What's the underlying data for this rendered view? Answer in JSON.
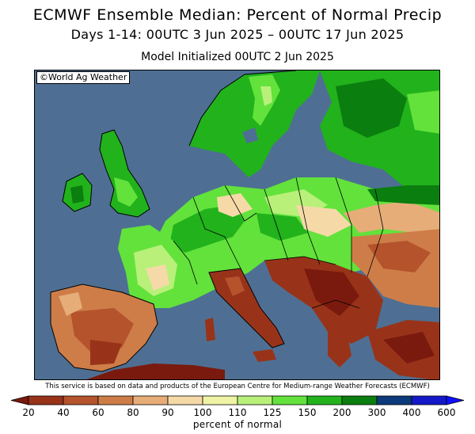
{
  "header": {
    "title": "ECMWF Ensemble Median: Percent of Normal Precip",
    "period": "Days 1-14: 00UTC 3 Jun 2025 – 00UTC 17 Jun 2025",
    "init": "Model Initialized 00UTC 2 Jun 2025"
  },
  "map": {
    "copyright": "©World Ag Weather",
    "ocean_color": "#4e6f93"
  },
  "footer": {
    "disclaimer": "This service is based on data and products of the European Centre for Medium-range Weather Forecasts (ECMWF)"
  },
  "legend": {
    "label": "percent of normal",
    "ticks": [
      "20",
      "40",
      "60",
      "80",
      "90",
      "100",
      "110",
      "125",
      "150",
      "200",
      "300",
      "400",
      "600"
    ],
    "colors": [
      "#7a1a0e",
      "#98331a",
      "#b4532c",
      "#ce7d48",
      "#e6ad78",
      "#f5daa8",
      "#eef3a6",
      "#b8f07a",
      "#62e23b",
      "#22b21c",
      "#0a7e0e",
      "#0c3a7a",
      "#1418c8",
      "#1010ff"
    ]
  }
}
